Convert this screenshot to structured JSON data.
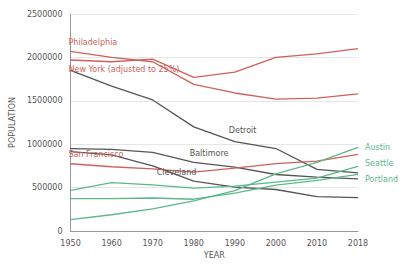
{
  "chart_data": {
    "type": "line",
    "x_label": "YEAR",
    "y_label": "POPULATION",
    "categories": [
      "1950",
      "1960",
      "1970",
      "1980",
      "1990",
      "2000",
      "2010",
      "2018"
    ],
    "ylim": [
      0,
      2500000
    ],
    "yticks": [
      0,
      500000,
      1000000,
      1500000,
      2000000,
      2500000
    ],
    "grid": true,
    "series": [
      {
        "name": "Philadelphia",
        "color": "#d0605c",
        "values": [
          2070000,
          2000000,
          1950000,
          1690000,
          1590000,
          1520000,
          1530000,
          1580000
        ]
      },
      {
        "name": "New York (adjusted to 25%)",
        "color": "#d0605c",
        "values": [
          1970000,
          1950000,
          1980000,
          1770000,
          1830000,
          2000000,
          2040000,
          2100000
        ]
      },
      {
        "name": "Detroit",
        "color": "#555555",
        "values": [
          1850000,
          1670000,
          1510000,
          1200000,
          1030000,
          950000,
          710000,
          670000
        ]
      },
      {
        "name": "Baltimore",
        "color": "#555555",
        "values": [
          950000,
          940000,
          905000,
          790000,
          736000,
          651000,
          621000,
          600000
        ]
      },
      {
        "name": "Cleveland",
        "color": "#555555",
        "values": [
          915000,
          876000,
          750000,
          574000,
          506000,
          478000,
          397000,
          384000
        ]
      },
      {
        "name": "San Francisco",
        "color": "#d0605c",
        "values": [
          775000,
          740000,
          716000,
          679000,
          724000,
          777000,
          805000,
          883000
        ]
      },
      {
        "name": "Austin",
        "color": "#5cb88a",
        "values": [
          132000,
          187000,
          254000,
          346000,
          466000,
          657000,
          790000,
          964000
        ]
      },
      {
        "name": "Seattle",
        "color": "#5cb88a",
        "values": [
          468000,
          557000,
          531000,
          494000,
          516000,
          563000,
          609000,
          745000
        ]
      },
      {
        "name": "Portland",
        "color": "#5cb88a",
        "values": [
          374000,
          373000,
          380000,
          366000,
          437000,
          529000,
          584000,
          653000
        ]
      }
    ]
  }
}
